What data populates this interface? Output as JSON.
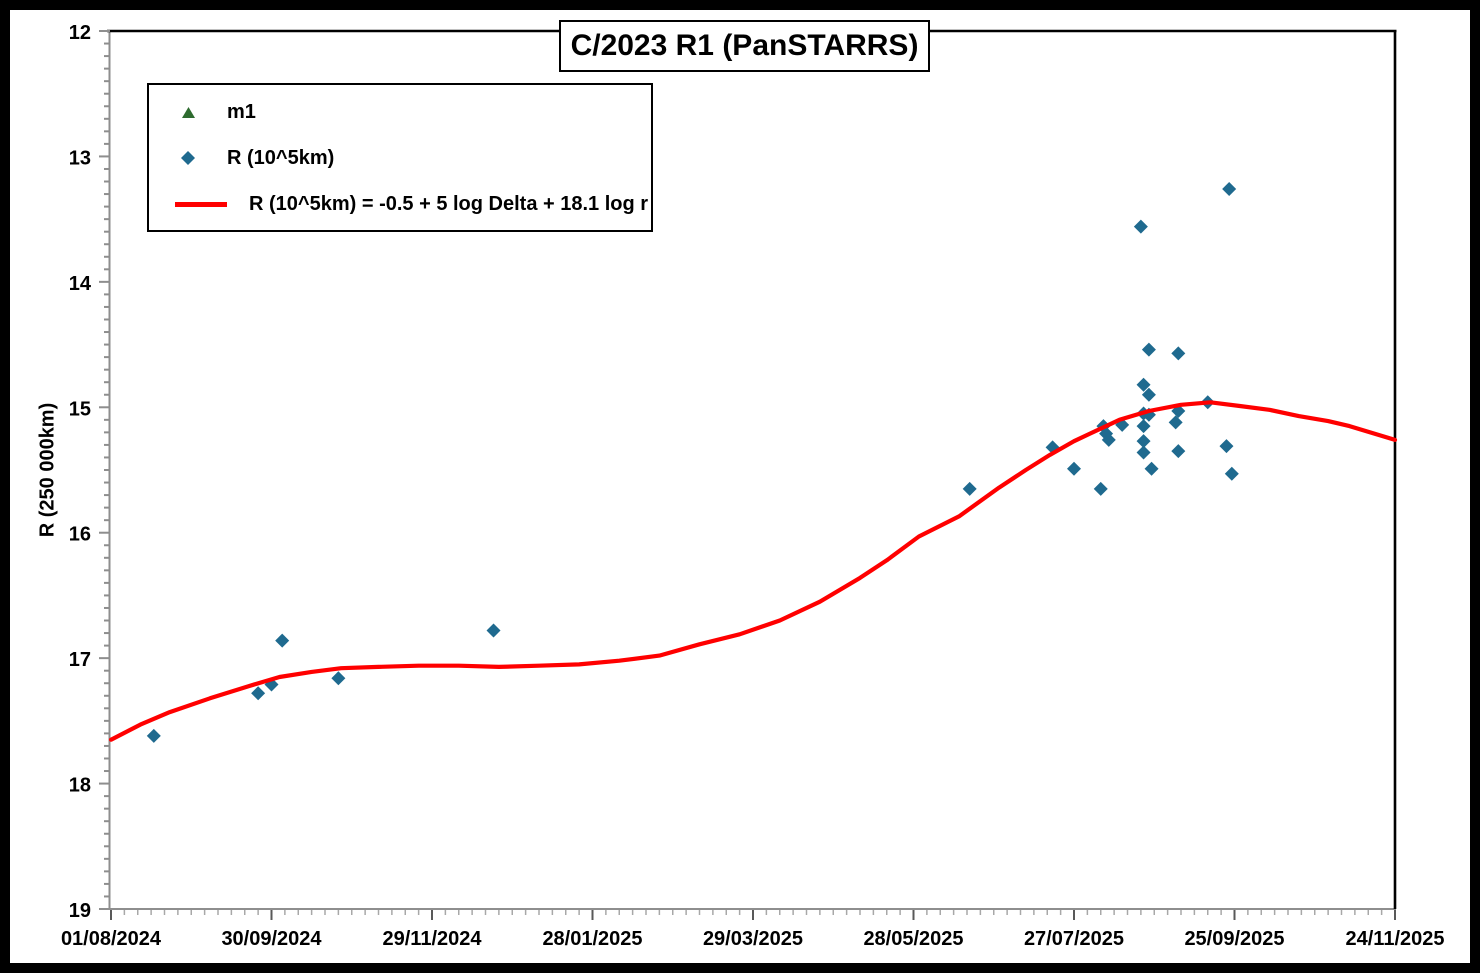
{
  "chart_data": {
    "type": "scatter",
    "title": "C/2023 R1 (PanSTARRS)",
    "xlabel": "",
    "ylabel": "R (250 000km)",
    "grid": "off",
    "legend": {
      "position": "top-left",
      "border": true
    },
    "x_axis": {
      "kind": "date",
      "start_date": "01/08/2024",
      "end_date": "24/11/2025",
      "span_days": 480,
      "tick_interval_days": 60,
      "minor_tick_days": 5,
      "tick_labels": [
        "01/08/2024",
        "30/09/2024",
        "29/11/2024",
        "28/01/2025",
        "29/03/2025",
        "28/05/2025",
        "27/07/2025",
        "25/09/2025",
        "24/11/2025"
      ]
    },
    "y_axis": {
      "min": 12,
      "max": 19,
      "tick_interval": 1,
      "minor_tick": 0.1,
      "inverted": true,
      "tick_labels": [
        "12",
        "13",
        "14",
        "15",
        "16",
        "17",
        "18",
        "19"
      ]
    },
    "x_unit_note": "points given as [days since 01/08/2024, R value]",
    "series": [
      {
        "name": "m1",
        "type": "scatter",
        "marker": "triangle",
        "color": "#2E6B2F",
        "points": []
      },
      {
        "name": "R (10^5km)",
        "type": "scatter",
        "marker": "diamond",
        "color": "#1F6A8F",
        "points": [
          [
            16,
            17.62
          ],
          [
            55,
            17.28
          ],
          [
            60,
            17.21
          ],
          [
            64,
            16.86
          ],
          [
            85,
            17.16
          ],
          [
            143,
            16.78
          ],
          [
            321,
            15.65
          ],
          [
            352,
            15.32
          ],
          [
            360,
            15.49
          ],
          [
            370,
            15.65
          ],
          [
            371,
            15.15
          ],
          [
            372,
            15.21
          ],
          [
            373,
            15.26
          ],
          [
            378,
            15.14
          ],
          [
            385,
            13.56
          ],
          [
            386,
            14.82
          ],
          [
            388,
            14.9
          ],
          [
            386,
            15.05
          ],
          [
            388,
            15.06
          ],
          [
            386,
            15.15
          ],
          [
            386,
            15.27
          ],
          [
            386,
            15.36
          ],
          [
            388,
            14.54
          ],
          [
            389,
            15.49
          ],
          [
            398,
            15.12
          ],
          [
            399,
            14.57
          ],
          [
            399,
            15.03
          ],
          [
            399,
            15.35
          ],
          [
            410,
            14.96
          ],
          [
            417,
            15.31
          ],
          [
            418,
            13.26
          ],
          [
            419,
            15.53
          ]
        ]
      },
      {
        "name": "R (10^5km) = -0.5 + 5 log Delta + 18.1 log r",
        "type": "line",
        "color": "#FF0000",
        "points": [
          [
            0,
            17.65
          ],
          [
            11,
            17.53
          ],
          [
            22,
            17.43
          ],
          [
            37,
            17.32
          ],
          [
            52,
            17.22
          ],
          [
            63,
            17.15
          ],
          [
            75,
            17.11
          ],
          [
            86,
            17.08
          ],
          [
            100,
            17.07
          ],
          [
            115,
            17.06
          ],
          [
            130,
            17.06
          ],
          [
            145,
            17.07
          ],
          [
            160,
            17.06
          ],
          [
            175,
            17.05
          ],
          [
            190,
            17.02
          ],
          [
            205,
            16.98
          ],
          [
            220,
            16.89
          ],
          [
            235,
            16.81
          ],
          [
            250,
            16.7
          ],
          [
            265,
            16.55
          ],
          [
            280,
            16.36
          ],
          [
            290,
            16.22
          ],
          [
            302,
            16.03
          ],
          [
            317,
            15.87
          ],
          [
            332,
            15.64
          ],
          [
            342,
            15.5
          ],
          [
            351,
            15.38
          ],
          [
            360,
            15.27
          ],
          [
            366,
            15.21
          ],
          [
            377,
            15.1
          ],
          [
            388,
            15.03
          ],
          [
            400,
            14.98
          ],
          [
            411,
            14.96
          ],
          [
            422,
            14.99
          ],
          [
            433,
            15.02
          ],
          [
            444,
            15.07
          ],
          [
            455,
            15.11
          ],
          [
            463,
            15.15
          ],
          [
            480,
            15.26
          ]
        ]
      }
    ]
  }
}
